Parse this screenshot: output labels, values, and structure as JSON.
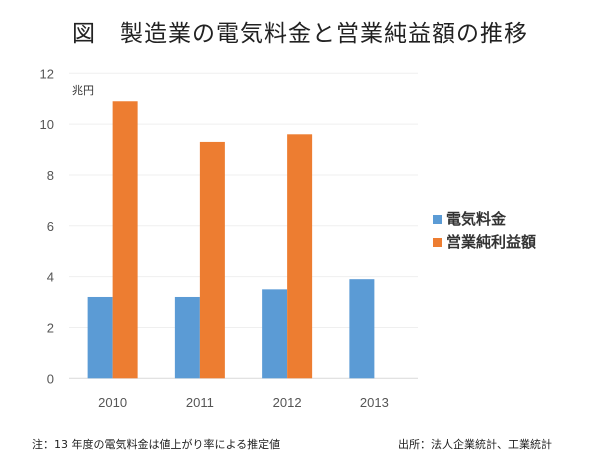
{
  "title": "図　製造業の電気料金と営業純益額の推移",
  "footer": {
    "note": "注：13 年度の電気料金は値上がり率による推定値",
    "source": "出所：法人企業統計、工業統計"
  },
  "chart_data": {
    "type": "bar",
    "title": "図　製造業の電気料金と営業純益額の推移",
    "ylabel": "兆円",
    "xlabel": "",
    "categories": [
      "2010",
      "2011",
      "2012",
      "2013"
    ],
    "series": [
      {
        "name": "電気料金",
        "values": [
          3.2,
          3.2,
          3.5,
          3.9
        ],
        "color": "#5b9bd5"
      },
      {
        "name": "営業純利益額",
        "values": [
          10.9,
          9.3,
          9.6,
          null
        ],
        "color": "#ed7d31"
      }
    ],
    "ylim": [
      0,
      12
    ],
    "yticks": [
      0,
      2,
      4,
      6,
      8,
      10,
      12
    ],
    "grid": true,
    "legend_position": "right"
  }
}
